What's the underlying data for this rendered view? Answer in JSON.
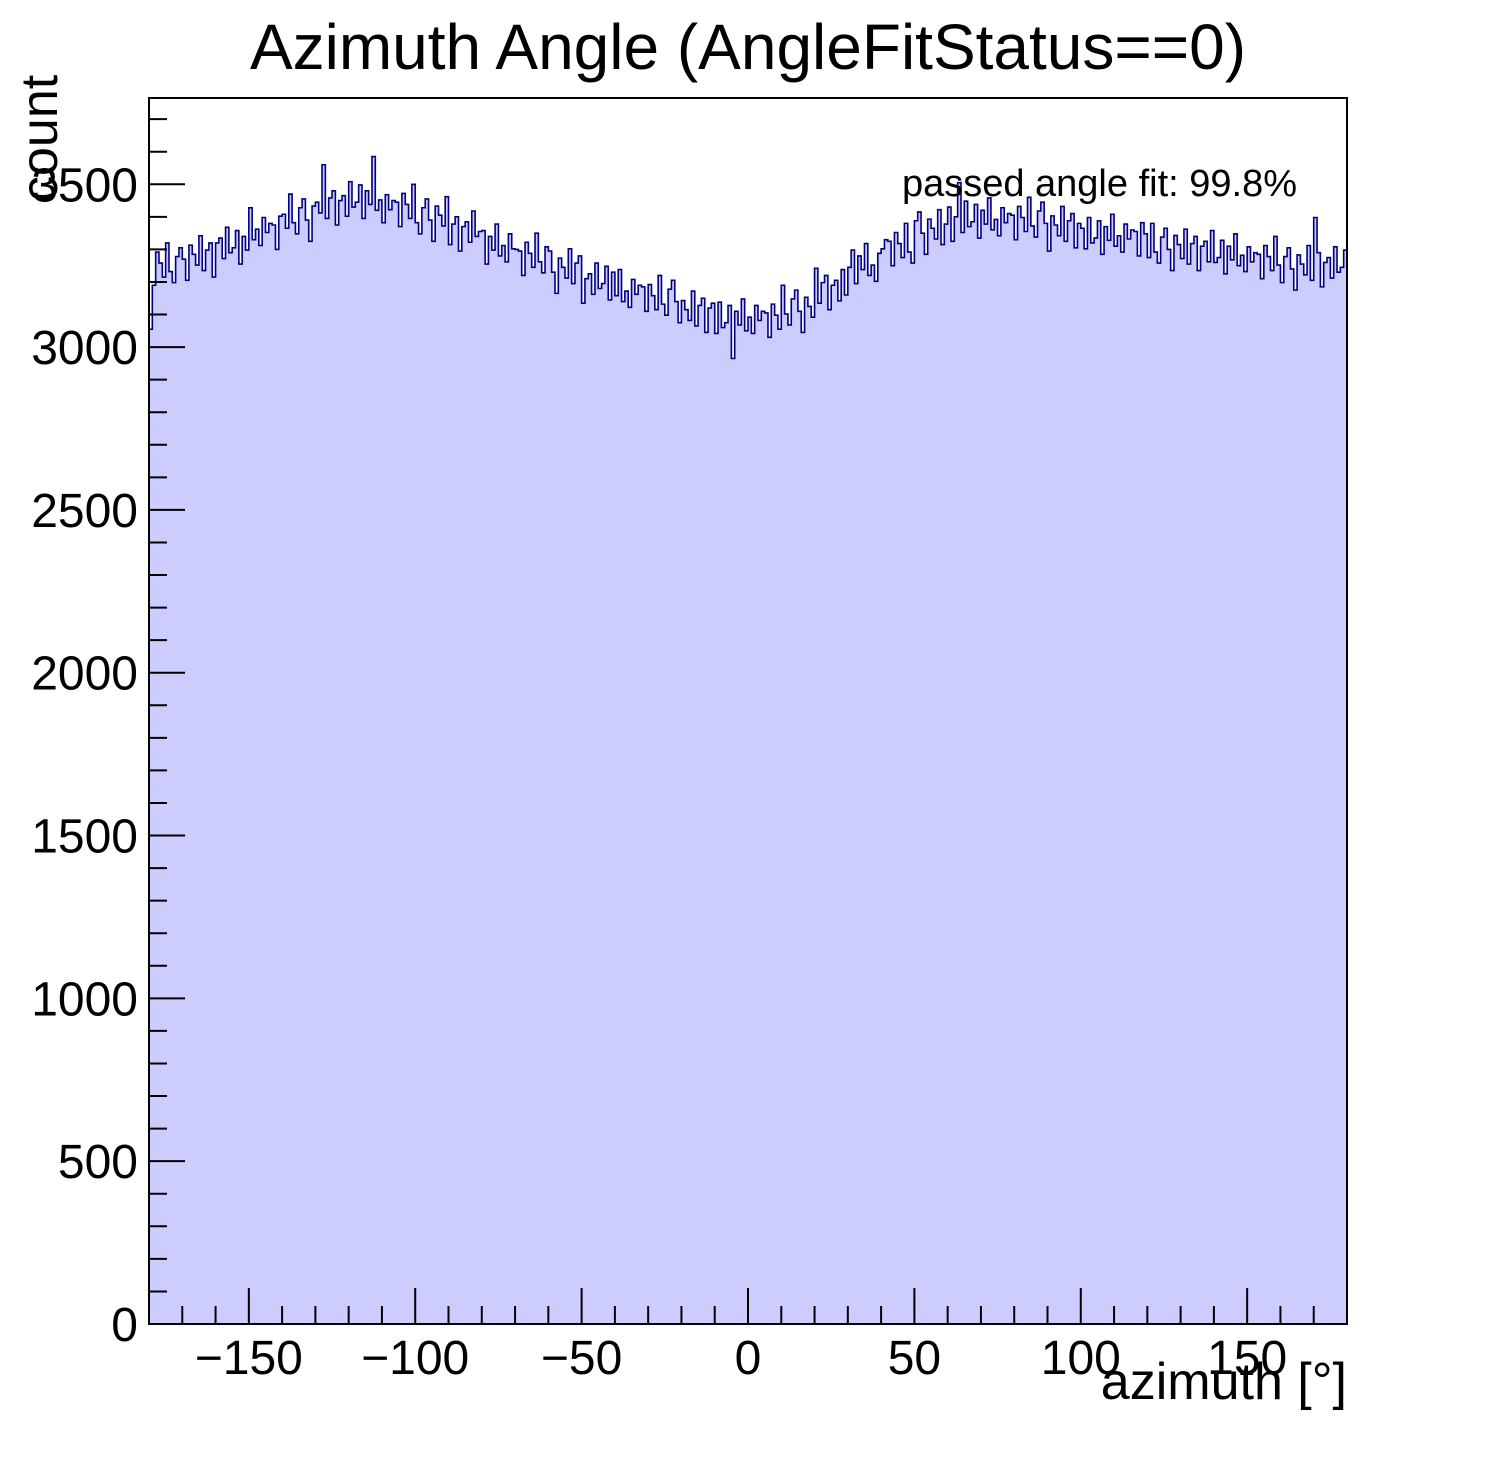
{
  "title": "Azimuth Angle (AngleFitStatus==0)",
  "annotation": "passed angle fit: 99.8%",
  "chart_data": {
    "type": "bar",
    "subtype": "histogram-step-filled",
    "title": "Azimuth Angle (AngleFitStatus==0)",
    "xlabel": "azimuth [°]",
    "ylabel": "count",
    "annotation": "passed angle fit: 99.8%",
    "xlim": [
      -180,
      180
    ],
    "ylim": [
      0,
      3765
    ],
    "bin_width_deg": 1,
    "x_start": -180,
    "x_major_ticks": [
      -150,
      -100,
      -50,
      0,
      50,
      100,
      150
    ],
    "x_tick_labels": [
      "−150",
      "−100",
      "−50",
      "0",
      "50",
      "100",
      "150"
    ],
    "x_minor_step": 10,
    "y_major_ticks": [
      0,
      500,
      1000,
      1500,
      2000,
      2500,
      3000,
      3500
    ],
    "y_tick_labels": [
      "0",
      "500",
      "1000",
      "1500",
      "2000",
      "2500",
      "3000",
      "3500"
    ],
    "y_minor_step": 100,
    "grid": false,
    "legend": "none",
    "fill_color": "#ccccff",
    "line_color": "#000080",
    "frame_color": "#000000",
    "values": [
      3055,
      3190,
      3292,
      3258,
      3215,
      3320,
      3232,
      3198,
      3278,
      3305,
      3270,
      3205,
      3313,
      3285,
      3252,
      3342,
      3235,
      3298,
      3320,
      3215,
      3320,
      3335,
      3272,
      3368,
      3290,
      3305,
      3358,
      3255,
      3340,
      3298,
      3428,
      3330,
      3362,
      3312,
      3398,
      3352,
      3380,
      3375,
      3300,
      3402,
      3408,
      3365,
      3470,
      3382,
      3348,
      3428,
      3455,
      3390,
      3325,
      3433,
      3445,
      3412,
      3560,
      3395,
      3458,
      3480,
      3375,
      3450,
      3465,
      3402,
      3508,
      3430,
      3445,
      3498,
      3395,
      3480,
      3438,
      3585,
      3420,
      3452,
      3382,
      3468,
      3422,
      3450,
      3445,
      3370,
      3472,
      3438,
      3395,
      3500,
      3382,
      3348,
      3428,
      3455,
      3390,
      3325,
      3433,
      3405,
      3372,
      3462,
      3315,
      3378,
      3400,
      3295,
      3370,
      3385,
      3322,
      3418,
      3340,
      3355,
      3358,
      3255,
      3340,
      3298,
      3378,
      3280,
      3312,
      3262,
      3348,
      3302,
      3300,
      3295,
      3220,
      3322,
      3288,
      3245,
      3350,
      3262,
      3228,
      3308,
      3295,
      3230,
      3165,
      3273,
      3245,
      3212,
      3302,
      3195,
      3258,
      3280,
      3135,
      3210,
      3225,
      3162,
      3258,
      3180,
      3195,
      3248,
      3145,
      3230,
      3158,
      3238,
      3140,
      3172,
      3122,
      3208,
      3162,
      3190,
      3185,
      3110,
      3192,
      3158,
      3115,
      3220,
      3132,
      3098,
      3178,
      3205,
      3140,
      3075,
      3143,
      3115,
      3082,
      3172,
      3065,
      3128,
      3150,
      3045,
      3120,
      3135,
      3042,
      3138,
      3060,
      3075,
      3128,
      2965,
      3110,
      3068,
      3148,
      3050,
      3092,
      3042,
      3128,
      3082,
      3110,
      3105,
      3030,
      3132,
      3098,
      3055,
      3190,
      3102,
      3068,
      3148,
      3175,
      3110,
      3045,
      3153,
      3125,
      3092,
      3242,
      3135,
      3198,
      3220,
      3115,
      3190,
      3205,
      3142,
      3238,
      3160,
      3245,
      3298,
      3195,
      3280,
      3238,
      3318,
      3220,
      3252,
      3202,
      3288,
      3302,
      3330,
      3325,
      3250,
      3352,
      3318,
      3275,
      3380,
      3292,
      3258,
      3388,
      3415,
      3350,
      3285,
      3393,
      3365,
      3332,
      3422,
      3315,
      3378,
      3430,
      3325,
      3400,
      3505,
      3352,
      3448,
      3370,
      3385,
      3438,
      3335,
      3420,
      3378,
      3458,
      3360,
      3392,
      3342,
      3428,
      3382,
      3410,
      3405,
      3330,
      3432,
      3398,
      3355,
      3460,
      3372,
      3338,
      3418,
      3445,
      3380,
      3295,
      3403,
      3375,
      3342,
      3432,
      3325,
      3388,
      3410,
      3305,
      3380,
      3365,
      3302,
      3398,
      3320,
      3335,
      3388,
      3285,
      3370,
      3328,
      3408,
      3310,
      3342,
      3292,
      3378,
      3332,
      3360,
      3355,
      3280,
      3382,
      3348,
      3275,
      3380,
      3292,
      3258,
      3338,
      3365,
      3300,
      3235,
      3343,
      3315,
      3272,
      3362,
      3255,
      3318,
      3340,
      3235,
      3310,
      3325,
      3262,
      3358,
      3260,
      3275,
      3328,
      3225,
      3310,
      3268,
      3348,
      3250,
      3282,
      3232,
      3308,
      3262,
      3290,
      3285,
      3210,
      3312,
      3278,
      3235,
      3340,
      3252,
      3198,
      3278,
      3305,
      3240,
      3175,
      3283,
      3255,
      3222,
      3312,
      3205,
      3398,
      3290,
      3185,
      3260,
      3275,
      3212,
      3308,
      3230,
      3245,
      3298
    ]
  }
}
